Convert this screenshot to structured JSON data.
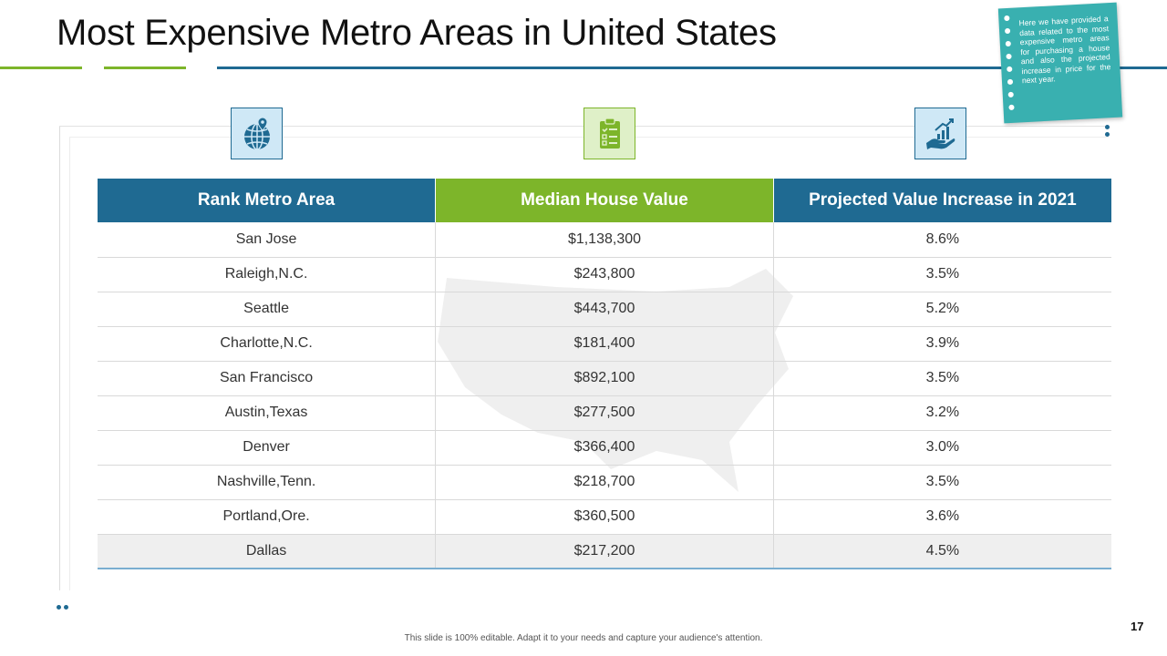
{
  "slide": {
    "title": "Most Expensive Metro Areas in United States",
    "note": "Here we have provided a data related to the most expensive metro areas for purchasing a house and also the projected increase in price for the next year.",
    "footer": "This slide is 100% editable. Adapt it to your needs and capture your audience's attention.",
    "page_number": "17"
  },
  "icons": [
    "globe-icon",
    "checklist-icon",
    "growth-hand-icon"
  ],
  "colors": {
    "blue": "#1f6a92",
    "green": "#7db52a",
    "teal": "#39b0b0"
  },
  "table": {
    "headers": [
      "Rank Metro Area",
      "Median House Value",
      "Projected Value Increase in 2021"
    ],
    "rows": [
      [
        "San Jose",
        "$1,138,300",
        "8.6%"
      ],
      [
        "Raleigh,N.C.",
        "$243,800",
        "3.5%"
      ],
      [
        "Seattle",
        "$443,700",
        "5.2%"
      ],
      [
        "Charlotte,N.C.",
        "$181,400",
        "3.9%"
      ],
      [
        "San Francisco",
        "$892,100",
        "3.5%"
      ],
      [
        "Austin,Texas",
        "$277,500",
        "3.2%"
      ],
      [
        "Denver",
        "$366,400",
        "3.0%"
      ],
      [
        "Nashville,Tenn.",
        "$218,700",
        "3.5%"
      ],
      [
        "Portland,Ore.",
        "$360,500",
        "3.6%"
      ],
      [
        "Dallas",
        "$217,200",
        "4.5%"
      ]
    ]
  }
}
